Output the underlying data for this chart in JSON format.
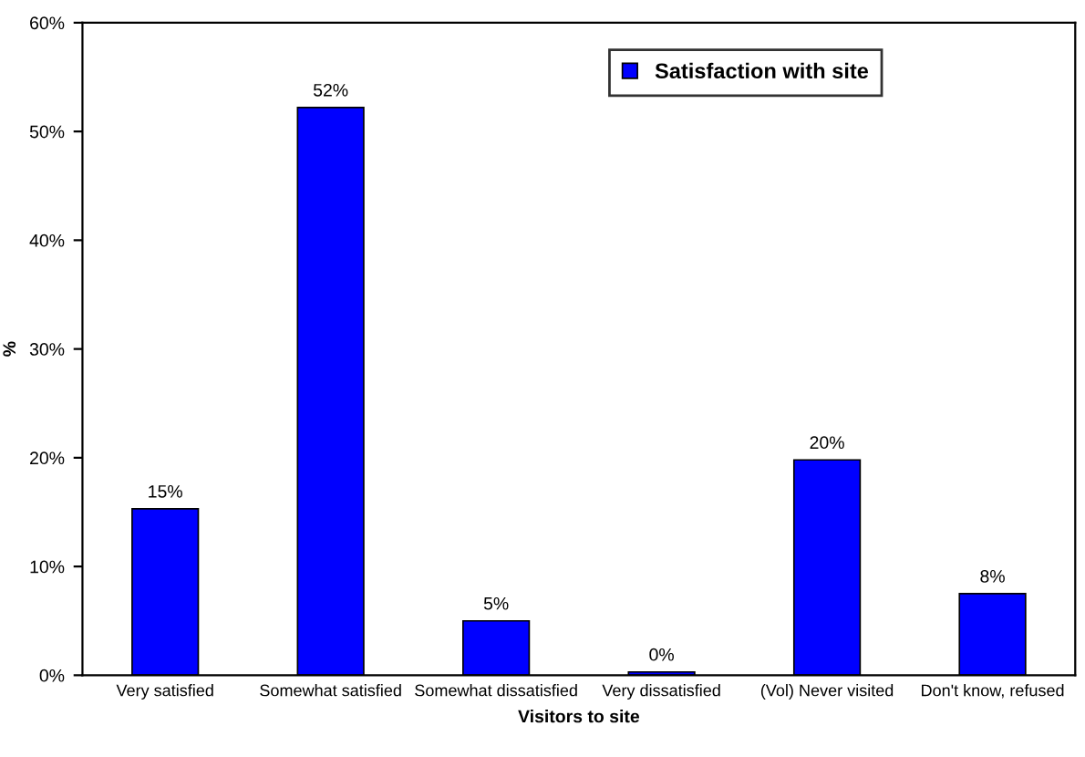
{
  "chart_data": {
    "type": "bar",
    "xlabel": "Visitors to site",
    "ylabel": "%",
    "categories": [
      "Very satisfied",
      "Somewhat satisfied",
      "Somewhat dissatisfied",
      "Very dissatisfied",
      "(Vol) Never visited",
      "Don't know, refused"
    ],
    "series": [
      {
        "name": "Satisfaction with site",
        "color": "#0000ff",
        "values": [
          15.3,
          52.2,
          5.0,
          0.3,
          19.8,
          7.5
        ],
        "value_labels": [
          "15%",
          "52%",
          "5%",
          "0%",
          "20%",
          "8%"
        ]
      }
    ],
    "ylim": [
      0,
      60
    ],
    "yticks": [
      {
        "value": 0,
        "label": "0%"
      },
      {
        "value": 10,
        "label": "10%"
      },
      {
        "value": 20,
        "label": "20%"
      },
      {
        "value": 30,
        "label": "30%"
      },
      {
        "value": 40,
        "label": "40%"
      },
      {
        "value": 50,
        "label": "50%"
      },
      {
        "value": 60,
        "label": "60%"
      }
    ],
    "grid": false,
    "legend": "top right"
  }
}
